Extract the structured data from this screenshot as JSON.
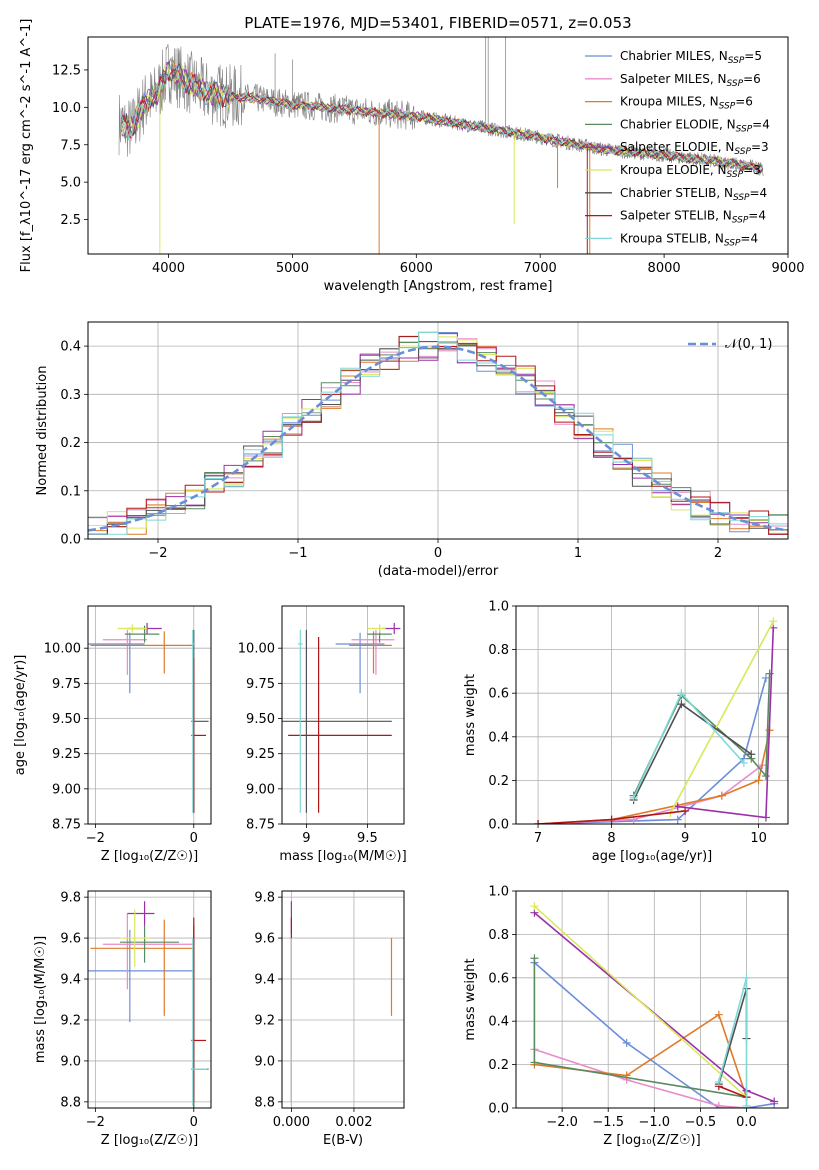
{
  "chart_data": [
    {
      "id": "spectrum",
      "type": "line",
      "title": "PLATE=1976, MJD=53401, FIBERID=0571, z=0.053",
      "xlabel": "wavelength [Angstrom, rest frame]",
      "ylabel": "Flux [f_λ10^-17 erg cm^-2 s^-1 A^-1]",
      "xlim": [
        3350,
        9000
      ],
      "ylim": [
        0.2,
        14.7
      ],
      "xticks": [
        4000,
        5000,
        6000,
        7000,
        8000,
        9000
      ],
      "yticks": [
        2.5,
        5.0,
        7.5,
        10.0,
        12.5
      ],
      "grid": false,
      "legend": "right",
      "series": [
        {
          "name": "Chabrier MILES, N_SSP=5",
          "color": "#6a8fd8"
        },
        {
          "name": "Salpeter MILES, N_SSP=6",
          "color": "#e88ccc"
        },
        {
          "name": "Kroupa MILES, N_SSP=6",
          "color": "#e07a28"
        },
        {
          "name": "Chabrier ELODIE, N_SSP=4",
          "color": "#5a8a60"
        },
        {
          "name": "Salpeter ELODIE, N_SSP=3",
          "color": "#9b30a8"
        },
        {
          "name": "Kroupa ELODIE, N_SSP=3",
          "color": "#d9e85c"
        },
        {
          "name": "Chabrier STELIB, N_SSP=4",
          "color": "#505050"
        },
        {
          "name": "Salpeter STELIB, N_SSP=4",
          "color": "#b01818"
        },
        {
          "name": "Kroupa STELIB, N_SSP=4",
          "color": "#7ed8d8"
        }
      ],
      "data_color": "#808080",
      "continuum": {
        "x": [
          3600,
          3700,
          3800,
          3900,
          4000,
          4100,
          4200,
          4300,
          4500,
          4700,
          5000,
          5500,
          6000,
          6500,
          7000,
          7500,
          8000,
          8500,
          8800
        ],
        "y": [
          9.0,
          8.5,
          10.2,
          10.8,
          12.5,
          12.0,
          11.5,
          11.0,
          10.7,
          10.6,
          10.2,
          9.8,
          9.4,
          8.7,
          8.0,
          7.2,
          6.8,
          6.3,
          5.9
        ]
      }
    },
    {
      "id": "residuals",
      "type": "histogram",
      "xlabel": "(data-model)/error",
      "ylabel": "Normed distribution",
      "xlim": [
        -2.5,
        2.5
      ],
      "ylim": [
        0,
        0.45
      ],
      "xticks": [
        -2,
        -1,
        0,
        1,
        2
      ],
      "yticks": [
        0.0,
        0.1,
        0.2,
        0.3,
        0.4
      ],
      "grid": true,
      "legend": "top-right",
      "normal_label": "𝒩(0, 1)",
      "normal_color": "#6a8fd8"
    },
    {
      "id": "age-vs-Z",
      "type": "errorbar",
      "xlabel": "Z [log₁₀(Z/Z☉)]",
      "ylabel": "age  [log₁₀(age/yr)]",
      "xlim": [
        -2.15,
        0.35
      ],
      "ylim": [
        8.75,
        10.3
      ],
      "xticks": [
        -2,
        0
      ],
      "yticks": [
        8.75,
        9.0,
        9.25,
        9.5,
        9.75,
        10.0
      ],
      "grid": true,
      "points": [
        {
          "color": "#6a8fd8",
          "x": -1.3,
          "y": 10.03,
          "xerr": [
            0.9,
            0.3
          ],
          "yerr": [
            0.35,
            0.08
          ]
        },
        {
          "color": "#e88ccc",
          "x": -1.35,
          "y": 10.06,
          "xerr": [
            0.5,
            0.4
          ],
          "yerr": [
            0.25,
            0.07
          ]
        },
        {
          "color": "#e07a28",
          "x": -0.6,
          "y": 10.02,
          "xerr": [
            1.5,
            0.6
          ],
          "yerr": [
            0.2,
            0.1
          ]
        },
        {
          "color": "#5a8a60",
          "x": -1.0,
          "y": 10.1,
          "xerr": [
            0.4,
            0.3
          ],
          "yerr": [
            0.06,
            0.06
          ]
        },
        {
          "color": "#9b30a8",
          "x": -0.95,
          "y": 10.14,
          "xerr": [
            0.4,
            0.3
          ],
          "yerr": [
            0.04,
            0.04
          ]
        },
        {
          "color": "#d9e85c",
          "x": -1.25,
          "y": 10.14,
          "xerr": [
            0.3,
            0.3
          ],
          "yerr": [
            0.03,
            0.03
          ]
        },
        {
          "color": "#505050",
          "x": 0.0,
          "y": 9.48,
          "xerr": [
            0.05,
            0.3
          ],
          "yerr": [
            0.65,
            0.65
          ]
        },
        {
          "color": "#b01818",
          "x": 0.0,
          "y": 9.38,
          "xerr": [
            0.05,
            0.25
          ],
          "yerr": [
            0.55,
            0.55
          ]
        },
        {
          "color": "#7ed8d8",
          "x": -0.02,
          "y": 10.03,
          "xerr": [
            0.02,
            0.05
          ],
          "yerr": [
            1.2,
            0.1
          ]
        }
      ]
    },
    {
      "id": "age-vs-mass",
      "type": "errorbar",
      "xlabel": "mass [log₁₀(M/M☉)]",
      "ylabel": "",
      "xlim": [
        8.8,
        9.8
      ],
      "ylim": [
        8.75,
        10.3
      ],
      "xticks": [
        9.0,
        9.5
      ],
      "yticks": [
        8.75,
        9.0,
        9.25,
        9.5,
        9.75,
        10.0
      ],
      "grid": true,
      "points": [
        {
          "color": "#6a8fd8",
          "x": 9.44,
          "y": 10.03,
          "xerr": [
            0.2,
            0.2
          ],
          "yerr": [
            0.35,
            0.08
          ]
        },
        {
          "color": "#e88ccc",
          "x": 9.57,
          "y": 10.06,
          "xerr": [
            0.2,
            0.15
          ],
          "yerr": [
            0.25,
            0.07
          ]
        },
        {
          "color": "#e07a28",
          "x": 9.55,
          "y": 10.02,
          "xerr": [
            0.2,
            0.15
          ],
          "yerr": [
            0.2,
            0.1
          ]
        },
        {
          "color": "#5a8a60",
          "x": 9.6,
          "y": 10.1,
          "xerr": [
            0.1,
            0.1
          ],
          "yerr": [
            0.06,
            0.06
          ]
        },
        {
          "color": "#9b30a8",
          "x": 9.72,
          "y": 10.14,
          "xerr": [
            0.1,
            0.05
          ],
          "yerr": [
            0.04,
            0.04
          ]
        },
        {
          "color": "#d9e85c",
          "x": 9.6,
          "y": 10.14,
          "xerr": [
            0.1,
            0.05
          ],
          "yerr": [
            0.03,
            0.03
          ]
        },
        {
          "color": "#505050",
          "x": 9.0,
          "y": 9.48,
          "xerr": [
            0.2,
            0.7
          ],
          "yerr": [
            0.65,
            0.65
          ]
        },
        {
          "color": "#b01818",
          "x": 9.1,
          "y": 9.38,
          "xerr": [
            0.25,
            0.6
          ],
          "yerr": [
            0.55,
            0.7
          ]
        },
        {
          "color": "#7ed8d8",
          "x": 8.95,
          "y": 10.03,
          "xerr": [
            0.02,
            0.02
          ],
          "yerr": [
            1.2,
            0.1
          ]
        }
      ]
    },
    {
      "id": "weight-vs-age",
      "type": "line",
      "xlabel": "age  [log₁₀(age/yr)]",
      "ylabel": "mass weight",
      "xlim": [
        6.7,
        10.4
      ],
      "ylim": [
        0,
        1
      ],
      "xticks": [
        7,
        8,
        9,
        10
      ],
      "yticks": [
        0.0,
        0.2,
        0.4,
        0.6,
        0.8,
        1.0
      ],
      "grid": true,
      "series": [
        {
          "color": "#6a8fd8",
          "x": [
            7.0,
            8.9,
            9.8,
            10.1
          ],
          "y": [
            0.0,
            0.02,
            0.3,
            0.67
          ]
        },
        {
          "color": "#e88ccc",
          "x": [
            7.0,
            8.3,
            9.5,
            10.05
          ],
          "y": [
            0.0,
            0.02,
            0.13,
            0.27
          ]
        },
        {
          "color": "#e07a28",
          "x": [
            7.0,
            8.0,
            9.5,
            10.0,
            10.15
          ],
          "y": [
            0.0,
            0.02,
            0.13,
            0.2,
            0.43
          ]
        },
        {
          "color": "#5a8a60",
          "x": [
            8.3,
            8.95,
            9.9,
            10.1,
            10.15
          ],
          "y": [
            0.13,
            0.59,
            0.3,
            0.22,
            0.69
          ]
        },
        {
          "color": "#9b30a8",
          "x": [
            8.9,
            10.1,
            10.2
          ],
          "y": [
            0.08,
            0.03,
            0.9
          ]
        },
        {
          "color": "#d9e85c",
          "x": [
            8.8,
            10.2
          ],
          "y": [
            0.05,
            0.93
          ]
        },
        {
          "color": "#505050",
          "x": [
            8.3,
            8.95,
            9.9
          ],
          "y": [
            0.11,
            0.55,
            0.32
          ]
        },
        {
          "color": "#b01818",
          "x": [
            7.0,
            8.0,
            9.0
          ],
          "y": [
            0.0,
            0.02,
            0.06
          ]
        },
        {
          "color": "#7ed8d8",
          "x": [
            8.3,
            8.95,
            9.8
          ],
          "y": [
            0.12,
            0.6,
            0.28
          ]
        }
      ]
    },
    {
      "id": "mass-vs-Z",
      "type": "errorbar",
      "xlabel": "Z [log₁₀(Z/Z☉)]",
      "ylabel": "mass [log₁₀(M/M☉)]",
      "xlim": [
        -2.15,
        0.35
      ],
      "ylim": [
        8.77,
        9.83
      ],
      "xticks": [
        -2,
        0
      ],
      "yticks": [
        8.8,
        9.0,
        9.2,
        9.4,
        9.6,
        9.8
      ],
      "grid": true,
      "points": [
        {
          "color": "#6a8fd8",
          "x": -1.3,
          "y": 9.44,
          "xerr": [
            0.9,
            1.3
          ],
          "yerr": [
            0.25,
            0.2
          ]
        },
        {
          "color": "#e88ccc",
          "x": -1.35,
          "y": 9.57,
          "xerr": [
            0.5,
            1.35
          ],
          "yerr": [
            0.22,
            0.15
          ]
        },
        {
          "color": "#e07a28",
          "x": -0.6,
          "y": 9.55,
          "xerr": [
            1.5,
            0.6
          ],
          "yerr": [
            0.33,
            0.14
          ]
        },
        {
          "color": "#5a8a60",
          "x": -1.0,
          "y": 9.58,
          "xerr": [
            0.5,
            0.7
          ],
          "yerr": [
            0.1,
            0.08
          ]
        },
        {
          "color": "#9b30a8",
          "x": -1.0,
          "y": 9.72,
          "xerr": [
            0.35,
            0.2
          ],
          "yerr": [
            0.06,
            0.06
          ]
        },
        {
          "color": "#d9e85c",
          "x": -1.2,
          "y": 9.6,
          "xerr": [
            0.3,
            0.3
          ],
          "yerr": [
            0.14,
            0.14
          ]
        },
        {
          "color": "#505050",
          "x": 0.0,
          "y": 8.96,
          "xerr": [
            0.05,
            0.3
          ],
          "yerr": [
            0.2,
            0.7
          ]
        },
        {
          "color": "#b01818",
          "x": 0.0,
          "y": 9.1,
          "xerr": [
            0.05,
            0.25
          ],
          "yerr": [
            0.3,
            0.6
          ]
        },
        {
          "color": "#7ed8d8",
          "x": -0.02,
          "y": 8.96,
          "xerr": [
            0.02,
            0.3
          ],
          "yerr": [
            0.18,
            0.64
          ]
        }
      ]
    },
    {
      "id": "mass-vs-ebv",
      "type": "errorbar",
      "xlabel": "E(B-V)",
      "ylabel": "",
      "xlim": [
        -0.0003,
        0.0036
      ],
      "ylim": [
        8.77,
        9.83
      ],
      "xticks": [
        0.0,
        0.002
      ],
      "xtick_labels": [
        "0.000",
        "0.002"
      ],
      "yticks": [
        8.8,
        9.0,
        9.2,
        9.4,
        9.6,
        9.8
      ],
      "grid": true,
      "points": [
        {
          "color": "#9b30a8",
          "x": 0.0,
          "y": 9.7,
          "xerr": [
            0,
            0
          ],
          "yerr": [
            0.08,
            0.08
          ]
        },
        {
          "color": "#b01818",
          "x": 0.0,
          "y": 9.1,
          "xerr": [
            0,
            0
          ],
          "yerr": [
            0.3,
            0.6
          ]
        },
        {
          "color": "#7ed8d8",
          "x": 0.0,
          "y": 8.96,
          "xerr": [
            0,
            0
          ],
          "yerr": [
            0.18,
            0.64
          ]
        },
        {
          "color": "#e07a28",
          "x": 0.0032,
          "y": 9.4,
          "xerr": [
            0,
            0
          ],
          "yerr": [
            0.18,
            0.2
          ]
        }
      ]
    },
    {
      "id": "weight-vs-Z",
      "type": "line",
      "xlabel": "Z [log₁₀(Z/Z☉)]",
      "ylabel": "mass weight",
      "xlim": [
        -2.5,
        0.45
      ],
      "ylim": [
        0,
        1
      ],
      "xticks": [
        -2.0,
        -1.5,
        -1.0,
        -0.5,
        0.0
      ],
      "xtick_labels": [
        "−2.0",
        "−1.5",
        "−1.0",
        "−0.5",
        "0.0"
      ],
      "yticks": [
        0.0,
        0.2,
        0.4,
        0.6,
        0.8,
        1.0
      ],
      "grid": true,
      "series": [
        {
          "color": "#6a8fd8",
          "x": [
            -2.3,
            -1.3,
            -0.3,
            0.0,
            0.3
          ],
          "y": [
            0.67,
            0.3,
            0.0,
            0.0,
            0.02
          ]
        },
        {
          "color": "#e88ccc",
          "x": [
            -2.3,
            -1.3,
            -0.3,
            0.0
          ],
          "y": [
            0.27,
            0.13,
            0.01,
            0.0
          ]
        },
        {
          "color": "#e07a28",
          "x": [
            -2.3,
            -1.3,
            -0.3,
            0.0
          ],
          "y": [
            0.2,
            0.15,
            0.43,
            0.05
          ]
        },
        {
          "color": "#5a8a60",
          "x": [
            -2.3,
            -2.3,
            0.0
          ],
          "y": [
            0.69,
            0.21,
            0.05
          ]
        },
        {
          "color": "#9b30a8",
          "x": [
            -2.3,
            0.0,
            0.3
          ],
          "y": [
            0.9,
            0.08,
            0.03
          ]
        },
        {
          "color": "#d9e85c",
          "x": [
            -2.3,
            0.0
          ],
          "y": [
            0.93,
            0.05
          ]
        },
        {
          "color": "#505050",
          "x": [
            -0.3,
            0.0,
            0.0
          ],
          "y": [
            0.11,
            0.55,
            0.32
          ]
        },
        {
          "color": "#b01818",
          "x": [
            -0.3,
            0.0
          ],
          "y": [
            0.1,
            0.05
          ]
        },
        {
          "color": "#7ed8d8",
          "x": [
            -0.3,
            0.0,
            0.0
          ],
          "y": [
            0.12,
            0.6,
            0.01
          ]
        }
      ]
    }
  ]
}
